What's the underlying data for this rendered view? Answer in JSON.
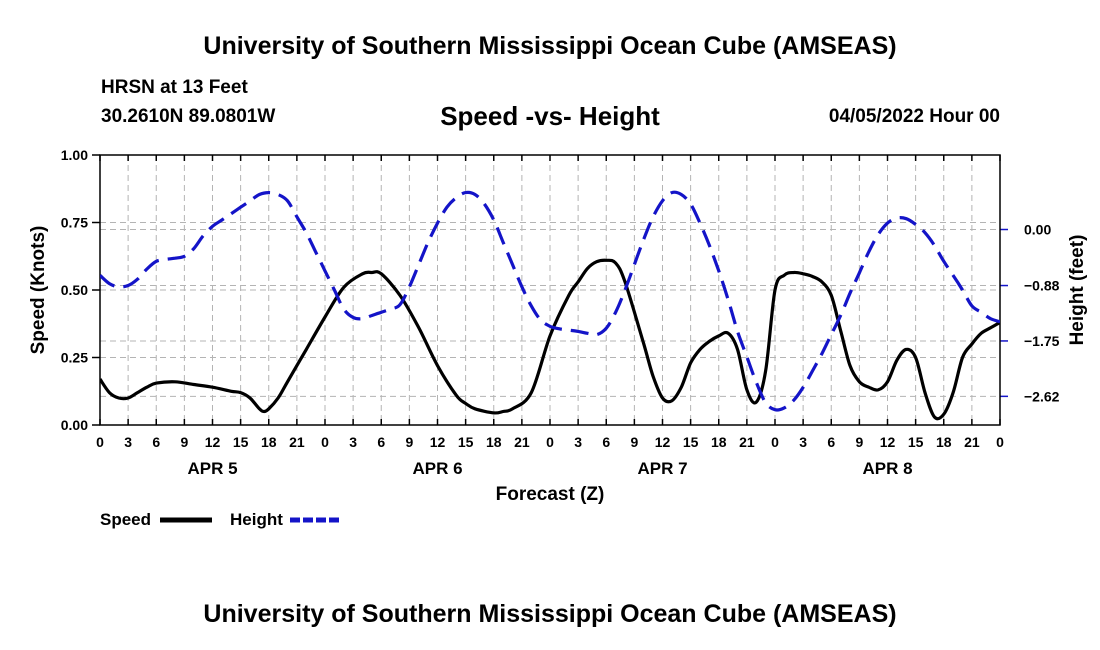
{
  "header": {
    "title": "University of Southern Mississippi Ocean Cube (AMSEAS)",
    "station": "HRSN at 13 Feet",
    "coords": "30.2610N  89.0801W",
    "subtitle": "Speed -vs- Height",
    "datetime": "04/05/2022 Hour 00"
  },
  "footer": {
    "title": "University of Southern Mississippi Ocean Cube (AMSEAS)"
  },
  "colors": {
    "speed": "#000000",
    "height": "#1414c8",
    "grid": "#b4b4b4"
  },
  "chart_data": {
    "type": "line",
    "xlabel": "Forecast (Z)",
    "ylabel_left": "Speed (Knots)",
    "ylabel_right": "Height (feet)",
    "x_range": [
      0,
      96
    ],
    "ylim_left": [
      0,
      1
    ],
    "ylim_right": [
      -3.07,
      1.17
    ],
    "hour_ticks": [
      "0",
      "3",
      "6",
      "9",
      "12",
      "15",
      "18",
      "21",
      "0",
      "3",
      "6",
      "9",
      "12",
      "15",
      "18",
      "21",
      "0",
      "3",
      "6",
      "9",
      "12",
      "15",
      "18",
      "21",
      "0",
      "3",
      "6",
      "9",
      "12",
      "15",
      "18",
      "21",
      "0"
    ],
    "day_labels": [
      {
        "label": "APR 5",
        "hour": 12
      },
      {
        "label": "APR 6",
        "hour": 36
      },
      {
        "label": "APR 7",
        "hour": 60
      },
      {
        "label": "APR 8",
        "hour": 84
      }
    ],
    "left_ticks": [
      {
        "value": 0,
        "label": "0.00"
      },
      {
        "value": 0.25,
        "label": "0.25"
      },
      {
        "value": 0.5,
        "label": "0.50"
      },
      {
        "value": 0.75,
        "label": "0.75"
      },
      {
        "value": 1,
        "label": "1.00"
      }
    ],
    "right_ticks": [
      {
        "value": 0,
        "label": "0.00"
      },
      {
        "value": -0.88,
        "label": "−0.88"
      },
      {
        "value": -1.75,
        "label": "−1.75"
      },
      {
        "value": -2.62,
        "label": "−2.62"
      }
    ],
    "legend": [
      {
        "name": "Speed",
        "style": "solid",
        "color": "#000000"
      },
      {
        "name": "Height",
        "style": "dashed",
        "color": "#1414c8"
      }
    ],
    "series": [
      {
        "name": "Speed",
        "axis": "left",
        "x": [
          0,
          1,
          2,
          3,
          4,
          5,
          6,
          8,
          10,
          12,
          14,
          15,
          16,
          17,
          17.5,
          18,
          19,
          20,
          22,
          24,
          26,
          28,
          29,
          30,
          32,
          34,
          36,
          38,
          39,
          40,
          42,
          43,
          44,
          46,
          48,
          50,
          51,
          52,
          53,
          54,
          55,
          56,
          58,
          59,
          60,
          61,
          62,
          63,
          64,
          65,
          66,
          67,
          68,
          69,
          70,
          71,
          72,
          73,
          74,
          75,
          76,
          77,
          78,
          79,
          80,
          81,
          82,
          83,
          84,
          85,
          86,
          87,
          88,
          89,
          90,
          91,
          92,
          93,
          94,
          95,
          96
        ],
        "y": [
          0.17,
          0.12,
          0.1,
          0.1,
          0.12,
          0.14,
          0.155,
          0.16,
          0.15,
          0.14,
          0.125,
          0.12,
          0.1,
          0.06,
          0.05,
          0.06,
          0.1,
          0.16,
          0.28,
          0.4,
          0.51,
          0.56,
          0.565,
          0.56,
          0.48,
          0.36,
          0.22,
          0.11,
          0.08,
          0.06,
          0.045,
          0.05,
          0.06,
          0.12,
          0.33,
          0.48,
          0.53,
          0.58,
          0.605,
          0.61,
          0.6,
          0.53,
          0.3,
          0.18,
          0.1,
          0.09,
          0.14,
          0.23,
          0.28,
          0.31,
          0.33,
          0.34,
          0.28,
          0.13,
          0.085,
          0.2,
          0.5,
          0.555,
          0.565,
          0.56,
          0.55,
          0.53,
          0.48,
          0.35,
          0.22,
          0.16,
          0.14,
          0.13,
          0.16,
          0.24,
          0.28,
          0.25,
          0.12,
          0.03,
          0.04,
          0.12,
          0.25,
          0.3,
          0.34,
          0.36,
          0.38
        ]
      },
      {
        "name": "Height",
        "axis": "right",
        "x": [
          0,
          1,
          2,
          3,
          4,
          5,
          6,
          7,
          8,
          9,
          10,
          11,
          12,
          13,
          14,
          15,
          16,
          17,
          18,
          19,
          20,
          21,
          22,
          23,
          24,
          25,
          26,
          27,
          28,
          29,
          30,
          31,
          32,
          33,
          34,
          35,
          36,
          37,
          38,
          39,
          40,
          41,
          42,
          43,
          44,
          45,
          46,
          47,
          48,
          49,
          50,
          51,
          52,
          53,
          54,
          55,
          56,
          57,
          58,
          59,
          60,
          61,
          62,
          63,
          64,
          65,
          66,
          67,
          68,
          69,
          70,
          71,
          72,
          73,
          74,
          75,
          76,
          77,
          78,
          79,
          80,
          81,
          82,
          83,
          84,
          85,
          86,
          87,
          88,
          89,
          90,
          91,
          92,
          93,
          94,
          95,
          96
        ],
        "y": [
          -0.72,
          -0.85,
          -0.9,
          -0.88,
          -0.78,
          -0.62,
          -0.5,
          -0.47,
          -0.45,
          -0.42,
          -0.3,
          -0.1,
          0.05,
          0.15,
          0.25,
          0.35,
          0.45,
          0.55,
          0.58,
          0.55,
          0.45,
          0.2,
          -0.05,
          -0.35,
          -0.65,
          -0.95,
          -1.25,
          -1.38,
          -1.4,
          -1.35,
          -1.3,
          -1.25,
          -1.18,
          -0.9,
          -0.55,
          -0.2,
          0.1,
          0.35,
          0.5,
          0.58,
          0.55,
          0.4,
          0.15,
          -0.2,
          -0.55,
          -0.9,
          -1.2,
          -1.42,
          -1.52,
          -1.56,
          -1.58,
          -1.6,
          -1.63,
          -1.65,
          -1.55,
          -1.3,
          -0.95,
          -0.55,
          -0.15,
          0.2,
          0.45,
          0.58,
          0.55,
          0.4,
          0.1,
          -0.25,
          -0.65,
          -1.1,
          -1.6,
          -2.0,
          -2.4,
          -2.72,
          -2.83,
          -2.8,
          -2.68,
          -2.48,
          -2.22,
          -1.95,
          -1.65,
          -1.35,
          -1.0,
          -0.68,
          -0.35,
          -0.08,
          0.1,
          0.18,
          0.17,
          0.08,
          -0.05,
          -0.25,
          -0.5,
          -0.72,
          -0.95,
          -1.2,
          -1.3,
          -1.4,
          -1.45
        ]
      }
    ]
  }
}
